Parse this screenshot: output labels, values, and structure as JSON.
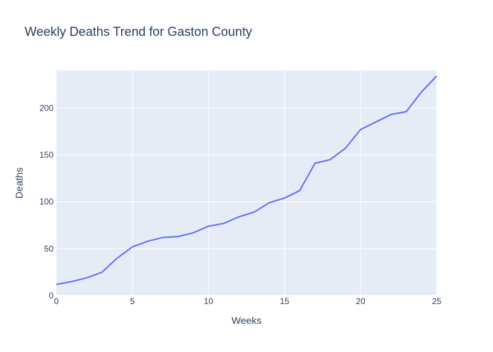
{
  "chart_data": {
    "type": "line",
    "title": "Weekly Deaths Trend for Gaston County",
    "xlabel": "Weeks",
    "ylabel": "Deaths",
    "xlim": [
      0,
      25
    ],
    "ylim": [
      0,
      240
    ],
    "xticks": [
      0,
      5,
      10,
      15,
      20,
      25
    ],
    "yticks": [
      0,
      50,
      100,
      150,
      200
    ],
    "grid": true,
    "series": [
      {
        "color": "#636efa",
        "x": [
          0,
          1,
          2,
          3,
          4,
          5,
          6,
          7,
          8,
          9,
          10,
          11,
          12,
          13,
          14,
          15,
          16,
          17,
          18,
          19,
          20,
          21,
          22,
          23,
          24,
          25
        ],
        "y": [
          12,
          15,
          19,
          25,
          40,
          52,
          58,
          62,
          63,
          67,
          74,
          77,
          84,
          89,
          99,
          104,
          112,
          141,
          145,
          157,
          177,
          185,
          193,
          196,
          217,
          234
        ]
      }
    ]
  },
  "colors": {
    "plot_bg": "#e5ecf6",
    "grid": "#ffffff",
    "text": "#2a3f5f",
    "line": "#636efa"
  }
}
